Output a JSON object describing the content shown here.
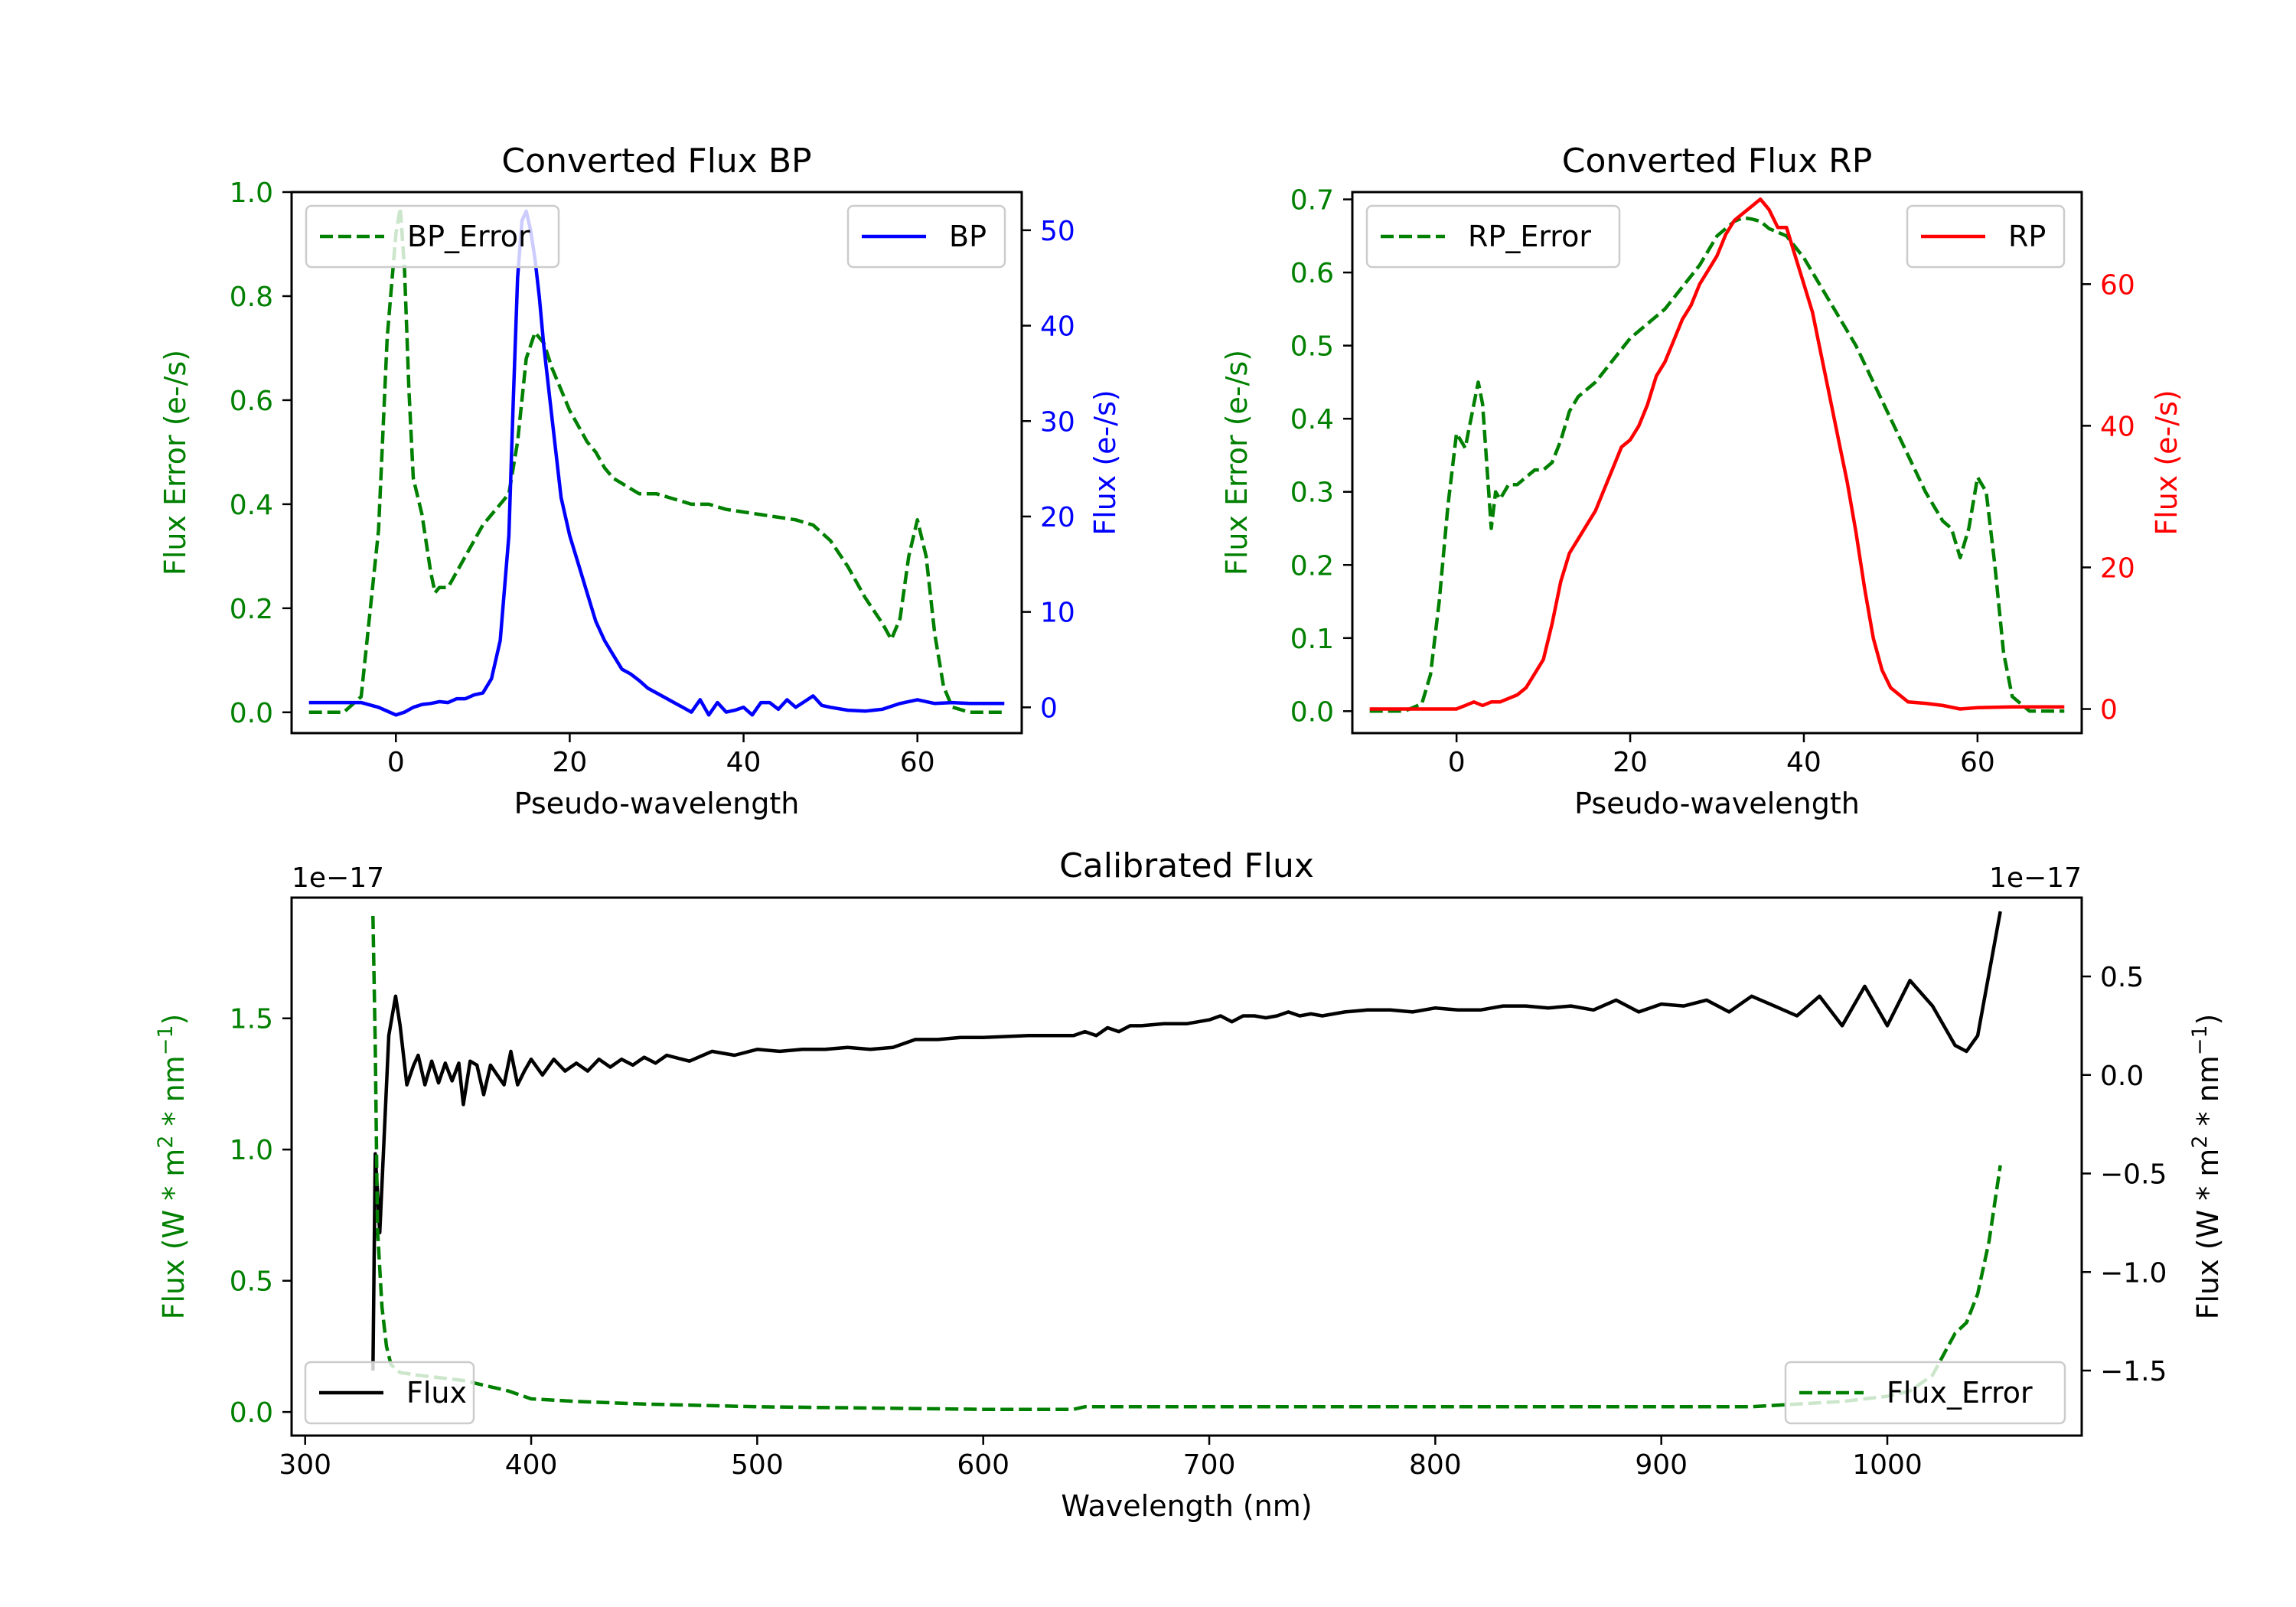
{
  "chart_data": [
    {
      "id": "bp",
      "type": "line",
      "title": "Converted Flux BP",
      "xlabel": "Pseudo-wavelength",
      "xlim": [
        -12,
        72
      ],
      "xticks": [
        0,
        20,
        40,
        60
      ],
      "left_axis": {
        "label": "Flux Error (e-/s)",
        "color": "#008000",
        "lim": [
          -0.04,
          1.0
        ],
        "ticks": [
          0.0,
          0.2,
          0.4,
          0.6,
          0.8,
          1.0
        ],
        "tick_labels": [
          "0.0",
          "0.2",
          "0.4",
          "0.6",
          "0.8",
          "1.0"
        ]
      },
      "right_axis": {
        "label": "Flux (e-/s)",
        "color": "#0000ff",
        "lim": [
          -2.7,
          54.0
        ],
        "ticks": [
          0,
          10,
          20,
          30,
          40,
          50
        ],
        "tick_labels": [
          "0",
          "10",
          "20",
          "30",
          "40",
          "50"
        ]
      },
      "series": [
        {
          "name": "BP_Error",
          "axis": "left",
          "color": "#008000",
          "dashed": true,
          "x": [
            -10,
            -6,
            -4,
            -2,
            -1,
            0,
            0.5,
            1,
            1.5,
            2,
            3,
            4,
            4.5,
            5,
            6,
            7,
            8,
            9,
            10,
            11,
            12,
            13,
            14,
            15,
            16,
            17,
            18,
            19,
            20,
            21,
            22,
            23,
            24,
            25,
            26,
            27,
            28,
            30,
            32,
            34,
            36,
            38,
            40,
            42,
            44,
            46,
            48,
            50,
            52,
            54,
            56,
            57,
            58,
            59,
            60,
            61,
            62,
            63,
            64,
            66,
            70
          ],
          "y": [
            0.0,
            0.0,
            0.03,
            0.35,
            0.72,
            0.92,
            0.97,
            0.85,
            0.62,
            0.45,
            0.38,
            0.27,
            0.23,
            0.24,
            0.24,
            0.27,
            0.3,
            0.33,
            0.36,
            0.38,
            0.4,
            0.42,
            0.52,
            0.68,
            0.73,
            0.71,
            0.66,
            0.62,
            0.58,
            0.55,
            0.52,
            0.5,
            0.47,
            0.45,
            0.44,
            0.43,
            0.42,
            0.42,
            0.41,
            0.4,
            0.4,
            0.39,
            0.385,
            0.38,
            0.375,
            0.37,
            0.36,
            0.33,
            0.28,
            0.22,
            0.17,
            0.14,
            0.18,
            0.3,
            0.37,
            0.3,
            0.15,
            0.05,
            0.01,
            0.0,
            0.0
          ]
        },
        {
          "name": "BP",
          "axis": "right",
          "color": "#0000ff",
          "dashed": false,
          "x": [
            -10,
            -4,
            -2,
            0,
            1,
            2,
            3,
            4,
            5,
            6,
            7,
            8,
            9,
            10,
            11,
            12,
            13,
            13.5,
            14,
            14.5,
            15,
            15.5,
            16,
            16.5,
            17,
            18,
            19,
            20,
            21,
            22,
            23,
            24,
            25,
            26,
            27,
            28,
            29,
            30,
            31,
            32,
            33,
            34,
            35,
            36,
            37,
            38,
            39,
            40,
            41,
            42,
            43,
            44,
            45,
            46,
            47,
            48,
            49,
            50,
            52,
            54,
            56,
            58,
            60,
            62,
            64,
            66,
            70
          ],
          "y": [
            0.5,
            0.5,
            0.0,
            -0.8,
            -0.5,
            0.0,
            0.3,
            0.4,
            0.6,
            0.5,
            0.9,
            0.9,
            1.3,
            1.5,
            3.0,
            7.0,
            18.0,
            32.0,
            45.0,
            51.0,
            52.0,
            50.0,
            47.0,
            43.0,
            38.0,
            30.0,
            22.0,
            18.0,
            15.0,
            12.0,
            9.0,
            7.0,
            5.5,
            4.0,
            3.5,
            2.8,
            2.0,
            1.5,
            1.0,
            0.5,
            0.0,
            -0.5,
            0.8,
            -0.8,
            0.5,
            -0.5,
            -0.3,
            0.0,
            -0.8,
            0.5,
            0.5,
            -0.2,
            0.8,
            0.0,
            0.6,
            1.2,
            0.2,
            0.0,
            -0.3,
            -0.4,
            -0.2,
            0.4,
            0.8,
            0.4,
            0.5,
            0.4,
            0.4
          ]
        }
      ],
      "legends": [
        {
          "entries": [
            "BP_Error"
          ],
          "placement": "upper left"
        },
        {
          "entries": [
            "BP"
          ],
          "placement": "upper right"
        }
      ]
    },
    {
      "id": "rp",
      "type": "line",
      "title": "Converted Flux RP",
      "xlabel": "Pseudo-wavelength",
      "xlim": [
        -12,
        72
      ],
      "xticks": [
        0,
        20,
        40,
        60
      ],
      "left_axis": {
        "label": "Flux Error (e-/s)",
        "color": "#008000",
        "lim": [
          -0.03,
          0.71
        ],
        "ticks": [
          0.0,
          0.1,
          0.2,
          0.3,
          0.4,
          0.5,
          0.6,
          0.7
        ],
        "tick_labels": [
          "0.0",
          "0.1",
          "0.2",
          "0.3",
          "0.4",
          "0.5",
          "0.6",
          "0.7"
        ]
      },
      "right_axis": {
        "label": "Flux (e-/s)",
        "color": "#ff0000",
        "lim": [
          -3.4,
          73.0
        ],
        "ticks": [
          0,
          20,
          40,
          60
        ],
        "tick_labels": [
          "0",
          "20",
          "40",
          "60"
        ]
      },
      "series": [
        {
          "name": "RP_Error",
          "axis": "left",
          "color": "#008000",
          "dashed": true,
          "x": [
            -10,
            -6,
            -4,
            -3,
            -2,
            -1,
            0,
            1,
            2,
            2.5,
            3,
            4,
            4.5,
            5,
            6,
            7,
            8,
            9,
            10,
            11,
            12,
            13,
            14,
            15,
            16,
            18,
            20,
            22,
            24,
            26,
            28,
            30,
            32,
            33,
            34,
            35,
            36,
            37,
            38,
            40,
            42,
            44,
            46,
            48,
            50,
            52,
            54,
            55,
            56,
            57,
            58,
            59,
            60,
            61,
            62,
            63,
            64,
            66,
            70
          ],
          "y": [
            0.0,
            0.0,
            0.01,
            0.05,
            0.15,
            0.28,
            0.38,
            0.36,
            0.42,
            0.45,
            0.42,
            0.25,
            0.3,
            0.29,
            0.31,
            0.31,
            0.32,
            0.33,
            0.33,
            0.34,
            0.37,
            0.41,
            0.43,
            0.44,
            0.45,
            0.48,
            0.51,
            0.53,
            0.55,
            0.58,
            0.61,
            0.65,
            0.67,
            0.675,
            0.673,
            0.67,
            0.66,
            0.655,
            0.65,
            0.62,
            0.58,
            0.54,
            0.5,
            0.45,
            0.4,
            0.35,
            0.3,
            0.28,
            0.26,
            0.25,
            0.21,
            0.25,
            0.32,
            0.3,
            0.2,
            0.08,
            0.02,
            0.0,
            0.0
          ]
        },
        {
          "name": "RP",
          "axis": "right",
          "color": "#ff0000",
          "dashed": false,
          "x": [
            -10,
            -6,
            -4,
            -2,
            0,
            1,
            2,
            3,
            4,
            5,
            6,
            7,
            8,
            9,
            10,
            11,
            12,
            13,
            14,
            15,
            16,
            17,
            18,
            19,
            20,
            21,
            22,
            23,
            24,
            25,
            26,
            27,
            28,
            29,
            30,
            31,
            32,
            33,
            34,
            35,
            36,
            37,
            38,
            39,
            40,
            41,
            42,
            43,
            44,
            45,
            46,
            47,
            48,
            49,
            50,
            52,
            54,
            56,
            58,
            60,
            64,
            70
          ],
          "y": [
            0.0,
            0.0,
            0.0,
            0.0,
            0.0,
            0.5,
            1.0,
            0.5,
            1.0,
            1.0,
            1.5,
            2.0,
            3.0,
            5.0,
            7.0,
            12.0,
            18.0,
            22.0,
            24.0,
            26.0,
            28.0,
            31.0,
            34.0,
            37.0,
            38.0,
            40.0,
            43.0,
            47.0,
            49.0,
            52.0,
            55.0,
            57.0,
            60.0,
            62.0,
            64.0,
            67.0,
            69.0,
            70.0,
            71.0,
            72.0,
            70.5,
            68.0,
            68.0,
            64.0,
            60.0,
            56.0,
            50.0,
            44.0,
            38.0,
            32.0,
            25.0,
            17.0,
            10.0,
            5.5,
            3.0,
            1.0,
            0.8,
            0.5,
            0.0,
            0.2,
            0.3,
            0.3
          ]
        }
      ],
      "legends": [
        {
          "entries": [
            "RP_Error"
          ],
          "placement": "upper left"
        },
        {
          "entries": [
            "RP"
          ],
          "placement": "upper right"
        }
      ]
    },
    {
      "id": "cal",
      "type": "line",
      "title": "Calibrated Flux",
      "xlabel": "Wavelength (nm)",
      "xlim": [
        294,
        1086
      ],
      "xticks": [
        300,
        400,
        500,
        600,
        700,
        800,
        900,
        1000
      ],
      "left_axis": {
        "label_parts": [
          "Flux (W * m",
          "2",
          " * nm",
          "−1",
          ")"
        ],
        "color": "#008000",
        "lim": [
          -0.09,
          1.96
        ],
        "ticks": [
          0.0,
          0.5,
          1.0,
          1.5
        ],
        "tick_labels": [
          "0.0",
          "0.5",
          "1.0",
          "1.5"
        ],
        "offset_text": "1e−17"
      },
      "right_axis": {
        "label_parts": [
          "Flux (W * m",
          "2",
          " * nm",
          "−1",
          ")"
        ],
        "color": "#000000",
        "lim": [
          -1.83,
          0.9
        ],
        "ticks": [
          -1.5,
          -1.0,
          -0.5,
          0.0,
          0.5
        ],
        "tick_labels": [
          "−1.5",
          "−1.0",
          "−0.5",
          "0.0",
          "0.5"
        ],
        "offset_text": "1e−17"
      },
      "series": [
        {
          "name": "Flux",
          "axis": "right",
          "color": "#000000",
          "dashed": false,
          "x": [
            330,
            331,
            333,
            335,
            337,
            340,
            342,
            345,
            348,
            350,
            353,
            356,
            359,
            362,
            365,
            368,
            370,
            373,
            376,
            379,
            382,
            385,
            388,
            391,
            394,
            397,
            400,
            405,
            410,
            415,
            420,
            425,
            430,
            435,
            440,
            445,
            450,
            455,
            460,
            470,
            480,
            490,
            500,
            510,
            520,
            530,
            540,
            550,
            560,
            570,
            580,
            590,
            600,
            620,
            640,
            645,
            650,
            655,
            660,
            665,
            670,
            680,
            690,
            700,
            705,
            710,
            715,
            720,
            725,
            730,
            735,
            740,
            745,
            750,
            760,
            770,
            780,
            790,
            800,
            810,
            820,
            830,
            840,
            850,
            860,
            870,
            880,
            890,
            900,
            910,
            920,
            930,
            940,
            950,
            960,
            970,
            980,
            990,
            1000,
            1010,
            1020,
            1030,
            1035,
            1040,
            1050
          ],
          "y": [
            -1.5,
            -0.4,
            -0.8,
            -0.3,
            0.2,
            0.4,
            0.25,
            -0.05,
            0.05,
            0.1,
            -0.05,
            0.07,
            -0.04,
            0.06,
            -0.03,
            0.06,
            -0.15,
            0.07,
            0.05,
            -0.1,
            0.05,
            0.0,
            -0.05,
            0.12,
            -0.05,
            0.02,
            0.08,
            0.0,
            0.08,
            0.02,
            0.06,
            0.02,
            0.08,
            0.04,
            0.08,
            0.05,
            0.09,
            0.06,
            0.1,
            0.07,
            0.12,
            0.1,
            0.13,
            0.12,
            0.13,
            0.13,
            0.14,
            0.13,
            0.14,
            0.18,
            0.18,
            0.19,
            0.19,
            0.2,
            0.2,
            0.22,
            0.2,
            0.24,
            0.22,
            0.25,
            0.25,
            0.26,
            0.26,
            0.28,
            0.3,
            0.27,
            0.3,
            0.3,
            0.29,
            0.3,
            0.32,
            0.3,
            0.31,
            0.3,
            0.32,
            0.33,
            0.33,
            0.32,
            0.34,
            0.33,
            0.33,
            0.35,
            0.35,
            0.34,
            0.35,
            0.33,
            0.38,
            0.32,
            0.36,
            0.35,
            0.38,
            0.32,
            0.4,
            0.35,
            0.3,
            0.4,
            0.25,
            0.45,
            0.25,
            0.48,
            0.35,
            0.15,
            0.12,
            0.2,
            0.83
          ]
        },
        {
          "name": "Flux_Error",
          "axis": "left",
          "color": "#008000",
          "dashed": true,
          "x": [
            330,
            331,
            332,
            334,
            336,
            338,
            342,
            350,
            370,
            390,
            400,
            420,
            450,
            500,
            600,
            640,
            645,
            650,
            700,
            800,
            900,
            940,
            960,
            980,
            1000,
            1010,
            1020,
            1025,
            1030,
            1035,
            1040,
            1045,
            1050
          ],
          "y": [
            1.89,
            1.4,
            0.7,
            0.4,
            0.25,
            0.18,
            0.15,
            0.14,
            0.12,
            0.08,
            0.05,
            0.04,
            0.03,
            0.02,
            0.01,
            0.01,
            0.02,
            0.02,
            0.02,
            0.02,
            0.02,
            0.02,
            0.03,
            0.04,
            0.06,
            0.08,
            0.14,
            0.22,
            0.3,
            0.34,
            0.45,
            0.65,
            0.94
          ]
        }
      ],
      "legends": [
        {
          "entries": [
            "Flux"
          ],
          "placement": "lower left"
        },
        {
          "entries": [
            "Flux_Error"
          ],
          "placement": "lower right"
        }
      ]
    }
  ]
}
